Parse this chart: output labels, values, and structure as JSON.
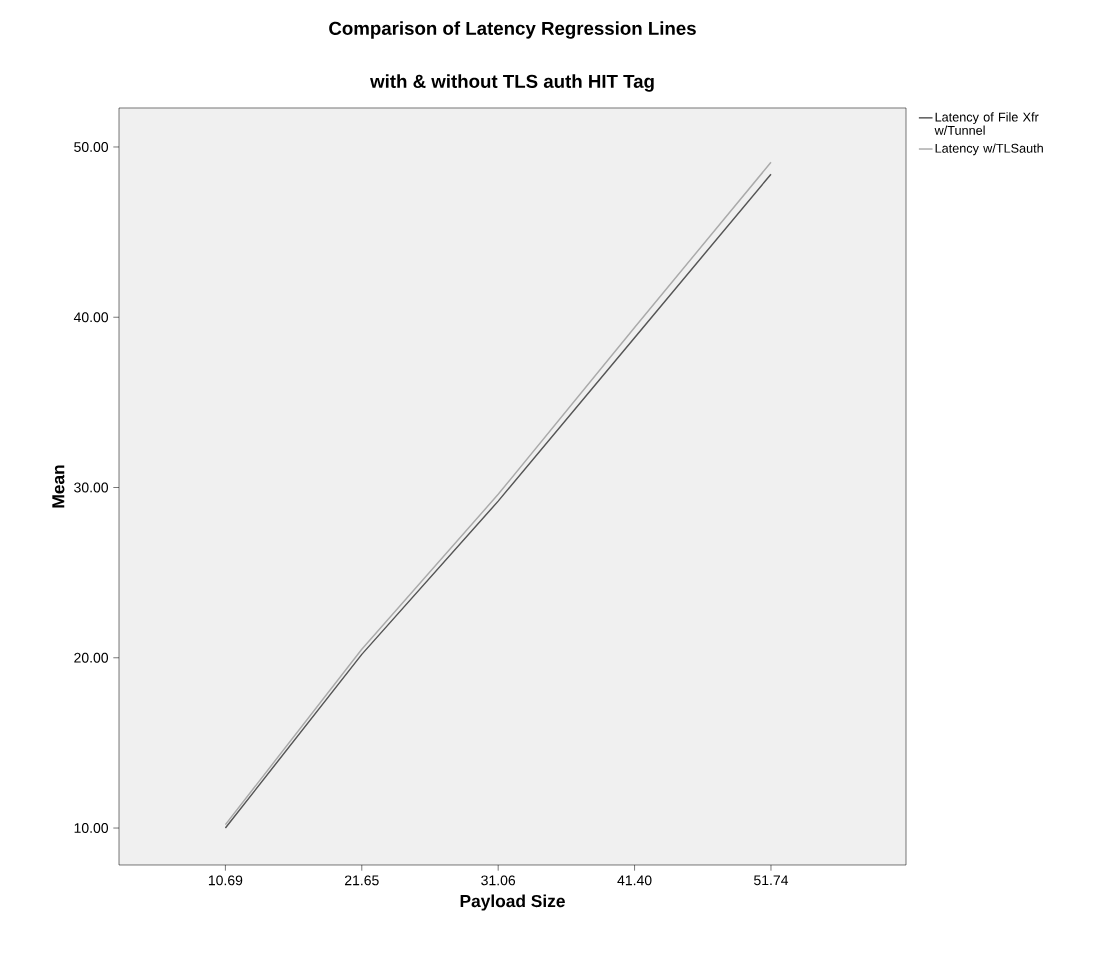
{
  "chart_data": {
    "type": "line",
    "title": "Comparison of Latency Regression Lines",
    "subtitle": "with & without TLS auth HIT Tag",
    "xlabel": "Payload Size",
    "ylabel": "Mean",
    "categories": [
      "10.69",
      "21.65",
      "31.06",
      "41.40",
      "51.74"
    ],
    "series": [
      {
        "name": "Latency of File Xfr w/Tunnel",
        "color": "#555555",
        "values": [
          10.0,
          20.2,
          29.2,
          38.8,
          48.4
        ]
      },
      {
        "name": "Latency w/TLSauth",
        "color": "#aaaaaa",
        "values": [
          10.2,
          20.5,
          29.6,
          39.4,
          49.1
        ]
      }
    ],
    "ylim": [
      7.83,
      52.29
    ],
    "yticks": [
      {
        "value": 10,
        "label": "10.00"
      },
      {
        "value": 20,
        "label": "20.00"
      },
      {
        "value": 30,
        "label": "30.00"
      },
      {
        "value": 40,
        "label": "40.00"
      },
      {
        "value": 50,
        "label": "50.00"
      }
    ],
    "legend": "top right",
    "marker": "none",
    "line_style": "solid",
    "grid": false
  }
}
